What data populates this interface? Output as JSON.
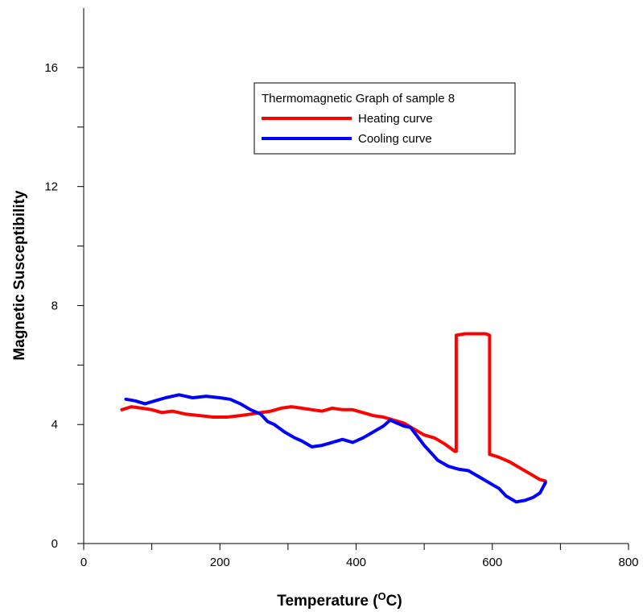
{
  "chart_data": {
    "type": "line",
    "title": "",
    "xlabel": "Temperature (",
    "xlabel_sup": "O",
    "xlabel_suffix": "C)",
    "ylabel": "Magnetic Susceptibility",
    "xlim": [
      0,
      800
    ],
    "ylim": [
      0,
      18
    ],
    "x_ticks": [
      0,
      200,
      400,
      600,
      800
    ],
    "x_tick_labels": [
      "0",
      "200",
      "400",
      "600",
      "800"
    ],
    "x_minor_ticks": [
      100,
      300,
      500,
      700
    ],
    "y_ticks": [
      0,
      4,
      8,
      12,
      16
    ],
    "y_tick_labels": [
      "0",
      "4",
      "8",
      "12",
      "16"
    ],
    "y_minor_ticks": [
      2,
      6,
      10,
      14
    ],
    "grid": false,
    "legend": {
      "position": "top-center",
      "title": "Thermomagnetic Graph of sample 8"
    },
    "series": [
      {
        "name": "Heating curve",
        "color": "#ff0000",
        "x": [
          56,
          70,
          85,
          100,
          115,
          130,
          150,
          170,
          190,
          210,
          230,
          245,
          260,
          275,
          290,
          305,
          320,
          335,
          350,
          365,
          380,
          395,
          410,
          425,
          440,
          455,
          470,
          485,
          500,
          515,
          530,
          545,
          547,
          547,
          560,
          575,
          590,
          596,
          596,
          610,
          625,
          640,
          655,
          670,
          678
        ],
        "y": [
          4.5,
          4.6,
          4.55,
          4.5,
          4.4,
          4.45,
          4.35,
          4.3,
          4.25,
          4.25,
          4.3,
          4.35,
          4.4,
          4.45,
          4.55,
          4.6,
          4.55,
          4.5,
          4.45,
          4.55,
          4.5,
          4.5,
          4.4,
          4.3,
          4.25,
          4.15,
          4.05,
          3.85,
          3.65,
          3.55,
          3.35,
          3.1,
          3.1,
          7.0,
          7.05,
          7.05,
          7.05,
          7.0,
          3.0,
          2.9,
          2.75,
          2.55,
          2.35,
          2.15,
          2.1
        ]
      },
      {
        "name": "Cooling curve",
        "color": "#0000ff",
        "x": [
          62,
          75,
          90,
          105,
          120,
          140,
          160,
          180,
          200,
          215,
          230,
          245,
          260,
          270,
          280,
          295,
          310,
          320,
          335,
          350,
          365,
          380,
          395,
          410,
          425,
          440,
          450,
          460,
          470,
          480,
          490,
          500,
          510,
          520,
          535,
          550,
          565,
          580,
          595,
          610,
          620,
          635,
          648,
          660,
          670,
          678
        ],
        "y": [
          4.85,
          4.8,
          4.7,
          4.8,
          4.9,
          5.0,
          4.9,
          4.95,
          4.9,
          4.85,
          4.7,
          4.5,
          4.35,
          4.1,
          4.0,
          3.75,
          3.55,
          3.45,
          3.25,
          3.3,
          3.4,
          3.5,
          3.4,
          3.55,
          3.75,
          3.95,
          4.15,
          4.05,
          3.95,
          3.9,
          3.6,
          3.3,
          3.05,
          2.8,
          2.6,
          2.5,
          2.45,
          2.25,
          2.05,
          1.85,
          1.6,
          1.4,
          1.45,
          1.55,
          1.7,
          2.05
        ]
      }
    ]
  }
}
